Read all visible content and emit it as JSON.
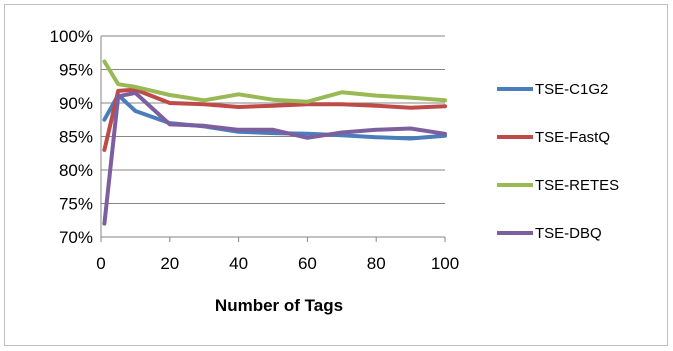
{
  "chart_data": {
    "type": "line",
    "xlabel": "Number of Tags",
    "ylabel": "",
    "title": "",
    "x": [
      1,
      5,
      10,
      20,
      30,
      40,
      50,
      60,
      70,
      80,
      90,
      100
    ],
    "xlim": [
      0,
      100
    ],
    "ylim": [
      70,
      100
    ],
    "x_ticks": [
      0,
      20,
      40,
      60,
      80,
      100
    ],
    "x_tick_labels": [
      "0",
      "20",
      "40",
      "60",
      "80",
      "100"
    ],
    "y_ticks": [
      70,
      75,
      80,
      85,
      90,
      95,
      100
    ],
    "y_tick_labels": [
      "70%",
      "75%",
      "80%",
      "85%",
      "90%",
      "95%",
      "100%"
    ],
    "grid": "horizontal",
    "legend_position": "right",
    "series": [
      {
        "name": "TSE-C1G2",
        "color": "#4a7ebb",
        "values": [
          87.5,
          91.2,
          88.8,
          87.0,
          86.5,
          85.7,
          85.5,
          85.4,
          85.2,
          84.9,
          84.7,
          85.1
        ]
      },
      {
        "name": "TSE-FastQ",
        "color": "#be4b48",
        "values": [
          83.0,
          91.8,
          92.0,
          90.0,
          89.8,
          89.4,
          89.6,
          89.8,
          89.8,
          89.6,
          89.3,
          89.5
        ]
      },
      {
        "name": "TSE-RETES",
        "color": "#98b954",
        "values": [
          96.2,
          92.8,
          92.4,
          91.2,
          90.4,
          91.3,
          90.5,
          90.2,
          91.6,
          91.1,
          90.8,
          90.4
        ]
      },
      {
        "name": "TSE-DBQ",
        "color": "#7d5fa0",
        "values": [
          72.0,
          91.0,
          91.5,
          86.8,
          86.6,
          86.0,
          86.0,
          84.8,
          85.6,
          86.0,
          86.2,
          85.4
        ]
      }
    ]
  }
}
